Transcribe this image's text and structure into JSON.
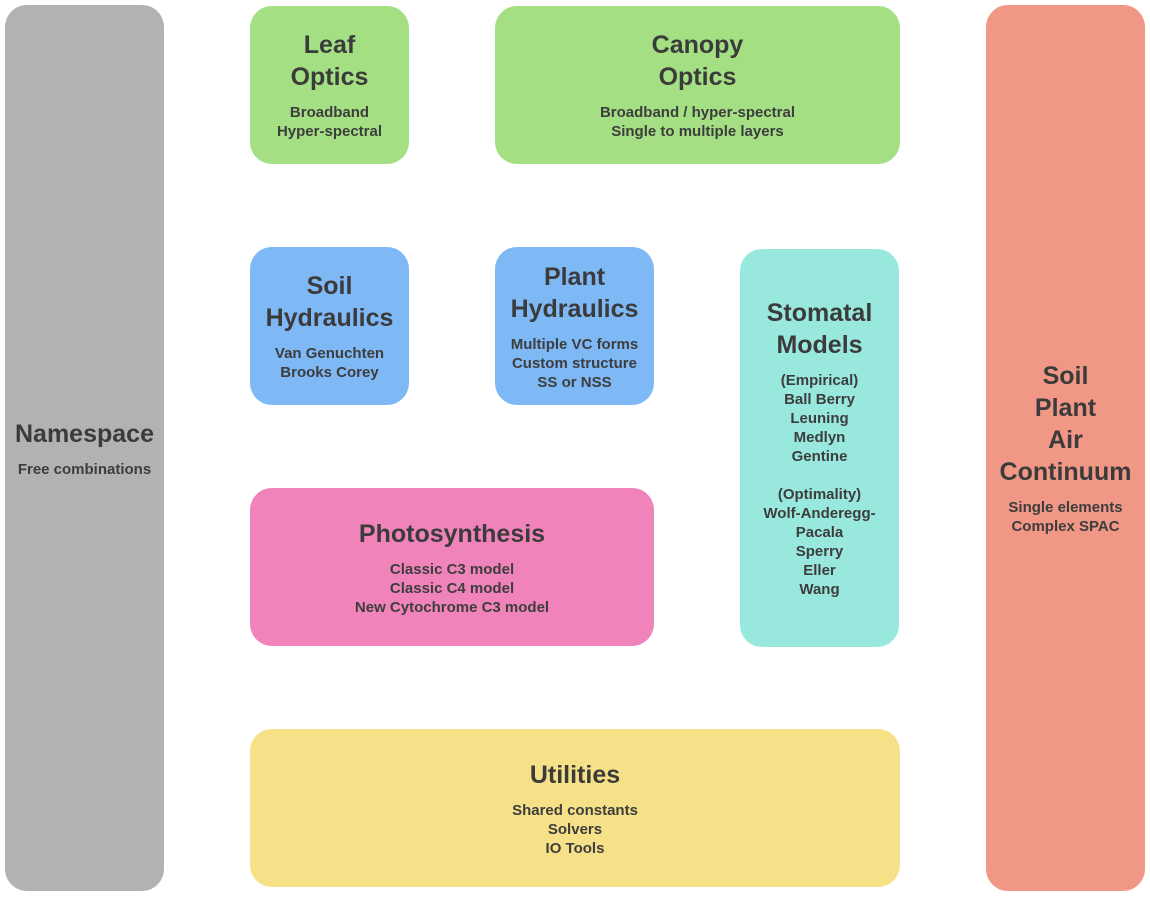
{
  "colors": {
    "namespace": "#b2b2b2",
    "optics": "#a4e083",
    "hydraulics": "#7eb9f6",
    "stomatal": "#98e8dd",
    "photosynthesis": "#f083ba",
    "utilities": "#f7e188",
    "spac": "#f09786"
  },
  "namespace": {
    "title": [
      "Namespace"
    ],
    "details": [
      "Free combinations"
    ]
  },
  "leaf_optics": {
    "title": [
      "Leaf",
      "Optics"
    ],
    "details": [
      "Broadband",
      "Hyper-spectral"
    ]
  },
  "canopy_optics": {
    "title": [
      "Canopy",
      "Optics"
    ],
    "details": [
      "Broadband / hyper-spectral",
      "Single to multiple layers"
    ]
  },
  "spac": {
    "title": [
      "Soil",
      "Plant",
      "Air",
      "Continuum"
    ],
    "details": [
      "Single elements",
      "Complex SPAC"
    ]
  },
  "soil_hydraulics": {
    "title": [
      "Soil",
      "Hydraulics"
    ],
    "details": [
      "Van Genuchten",
      "Brooks Corey"
    ]
  },
  "plant_hydraulics": {
    "title": [
      "Plant",
      "Hydraulics"
    ],
    "details": [
      "Multiple VC forms",
      "Custom structure",
      "SS or NSS"
    ]
  },
  "stomatal_models": {
    "title": [
      "Stomatal",
      "Models"
    ],
    "details": [
      "(Empirical)",
      "Ball Berry",
      "Leuning",
      "Medlyn",
      "Gentine",
      "",
      "(Optimality)",
      "Wolf-Anderegg-",
      "Pacala",
      "Sperry",
      "Eller",
      "Wang"
    ]
  },
  "photosynthesis": {
    "title": [
      "Photosynthesis"
    ],
    "details": [
      "Classic C3 model",
      "Classic C4 model",
      "New Cytochrome C3 model"
    ]
  },
  "utilities": {
    "title": [
      "Utilities"
    ],
    "details": [
      "Shared constants",
      "Solvers",
      "IO Tools"
    ]
  }
}
